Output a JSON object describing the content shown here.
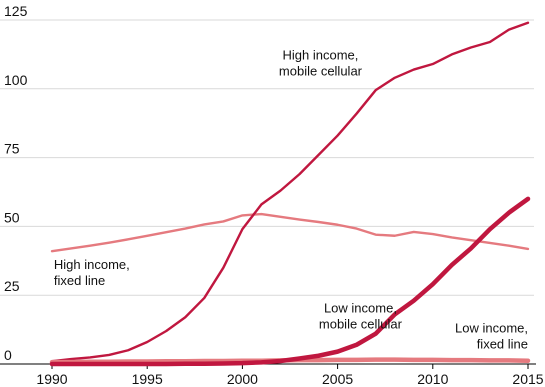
{
  "chart_data": {
    "type": "line",
    "title": "",
    "xlabel": "",
    "ylabel": "",
    "xlim": [
      1990,
      2015
    ],
    "ylim": [
      0,
      125
    ],
    "x_ticks": [
      "1990",
      "1995",
      "2000",
      "2005",
      "2010",
      "2015"
    ],
    "y_ticks": [
      "0",
      "25",
      "50",
      "75",
      "100",
      "125"
    ],
    "grid": true,
    "legend": "none",
    "x": [
      1990,
      1991,
      1992,
      1993,
      1994,
      1995,
      1996,
      1997,
      1998,
      1999,
      2000,
      2001,
      2002,
      2003,
      2004,
      2005,
      2006,
      2007,
      2008,
      2009,
      2010,
      2011,
      2012,
      2013,
      2014,
      2015
    ],
    "series": [
      {
        "key": "hi_mobile",
        "color": "#c0173f",
        "weight": "regular",
        "values": [
          1,
          1.8,
          2.4,
          3.3,
          5,
          8,
          12,
          17,
          24,
          35,
          49,
          58,
          63,
          69,
          76,
          83,
          91,
          99.5,
          104,
          107,
          109,
          112.5,
          115,
          117,
          121.5,
          124
        ]
      },
      {
        "key": "hi_fixed",
        "color": "#e57a7f",
        "weight": "regular",
        "values": [
          41,
          42,
          43,
          44.1,
          45.3,
          46.6,
          47.9,
          49.2,
          50.7,
          51.8,
          54,
          54.5,
          53.5,
          52.5,
          51.6,
          50.6,
          49.2,
          47,
          46.6,
          48,
          47.2,
          46,
          45,
          44,
          43,
          41.8
        ]
      },
      {
        "key": "low_mobile",
        "color": "#c0173f",
        "weight": "bold",
        "values": [
          0,
          0,
          0,
          0,
          0,
          0,
          0,
          0.1,
          0.1,
          0.2,
          0.3,
          0.6,
          1.1,
          2,
          3,
          4.5,
          7,
          11,
          18,
          23,
          29,
          36,
          42,
          49,
          55,
          60
        ]
      },
      {
        "key": "low_fixed",
        "color": "#e57a7f",
        "weight": "bold",
        "values": [
          0.7,
          0.7,
          0.8,
          0.8,
          0.9,
          0.9,
          1.0,
          1.0,
          1.1,
          1.1,
          1.2,
          1.2,
          1.3,
          1.4,
          1.4,
          1.5,
          1.5,
          1.6,
          1.6,
          1.5,
          1.5,
          1.4,
          1.4,
          1.3,
          1.3,
          1.2
        ]
      }
    ],
    "annotations": [
      {
        "key": "hi_mobile",
        "lines": [
          "High income,",
          "mobile cellular"
        ],
        "anchor": "middle",
        "x": 2004.1,
        "y": 110.7
      },
      {
        "key": "hi_fixed",
        "lines": [
          "High income,",
          "fixed line"
        ],
        "anchor": "start",
        "x": 1990.1,
        "y": 34.5
      },
      {
        "key": "low_mobile",
        "lines": [
          "Low income,",
          "mobile cellular"
        ],
        "anchor": "middle",
        "x": 2006.2,
        "y": 18.8
      },
      {
        "key": "low_fixed",
        "lines": [
          "Low income,",
          "fixed line"
        ],
        "anchor": "end",
        "x": 2015.0,
        "y": 11.4
      }
    ]
  }
}
